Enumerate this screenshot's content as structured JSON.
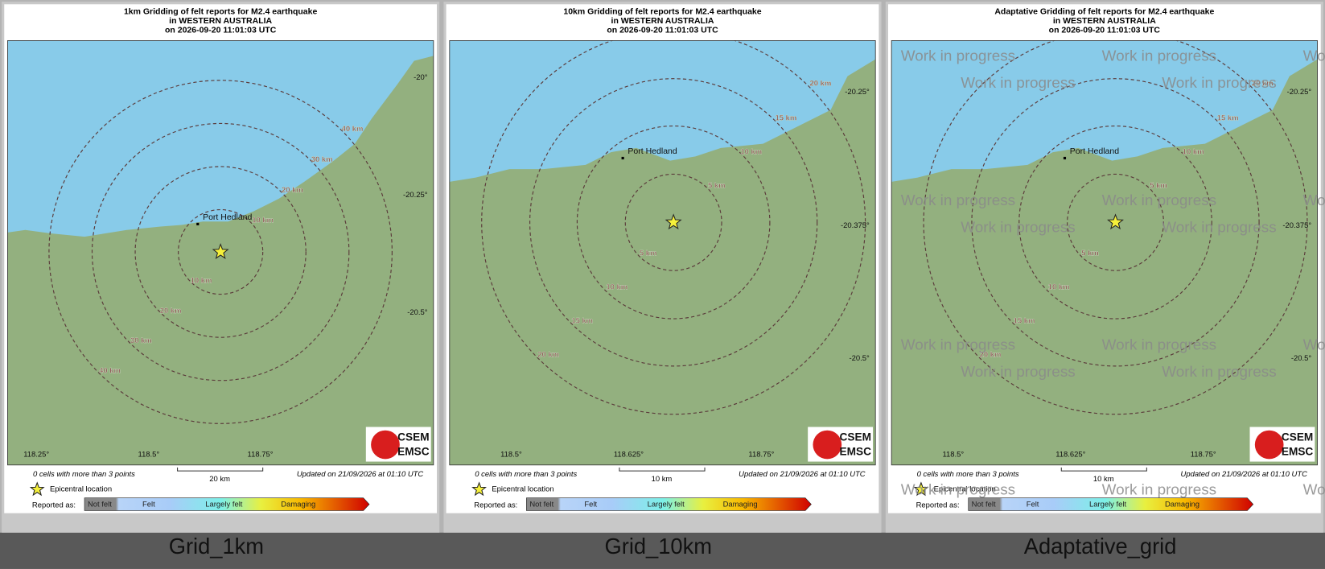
{
  "panels": [
    {
      "title": [
        "1km Gridding of felt reports for M2.4 earthquake",
        "in WESTERN AUSTRALIA",
        "on 2026-09-20 11:01:03 UTC"
      ],
      "place": "Port Hedland",
      "rings": [
        "10 km",
        "20 km",
        "30 km",
        "40 km"
      ],
      "lon_ticks": [
        "118.25°",
        "118.5°",
        "118.75°"
      ],
      "lat_ticks": [
        "-20°",
        "-20.25°",
        "-20.5°"
      ],
      "scale": "20 km",
      "caption": "Grid_1km"
    },
    {
      "title": [
        "10km Gridding of felt reports for M2.4 earthquake",
        "in WESTERN AUSTRALIA",
        "on 2026-09-20 11:01:03 UTC"
      ],
      "place": "Port Hedland",
      "rings": [
        "5 km",
        "10 km",
        "15 km",
        "20 km"
      ],
      "lon_ticks": [
        "118.5°",
        "118.625°",
        "118.75°"
      ],
      "lat_ticks": [
        "-20.25°",
        "-20.375°",
        "-20.5°"
      ],
      "scale": "10 km",
      "caption": "Grid_10km"
    },
    {
      "title": [
        "Adaptative Gridding of felt reports for M2.4 earthquake",
        "in WESTERN AUSTRALIA",
        "on 2026-09-20 11:01:03 UTC"
      ],
      "place": "Port Hedland",
      "rings": [
        "5 km",
        "10 km",
        "15 km",
        "20 km"
      ],
      "lon_ticks": [
        "118.5°",
        "118.625°",
        "118.75°"
      ],
      "lat_ticks": [
        "-20.25°",
        "-20.375°",
        "-20.5°"
      ],
      "scale": "10 km",
      "caption": "Adaptative_grid"
    }
  ],
  "footer": {
    "cells": "0 cells with more than 3 points",
    "updated": "Updated on 21/09/2026 at 01:10 UTC",
    "epicenter": "Epicentral location",
    "reported": "Reported as:",
    "classes": [
      "Not felt",
      "Felt",
      "Largely felt",
      "Damaging"
    ]
  },
  "logo": [
    "CSEM",
    "EMSC"
  ],
  "watermark": "Work in progress"
}
